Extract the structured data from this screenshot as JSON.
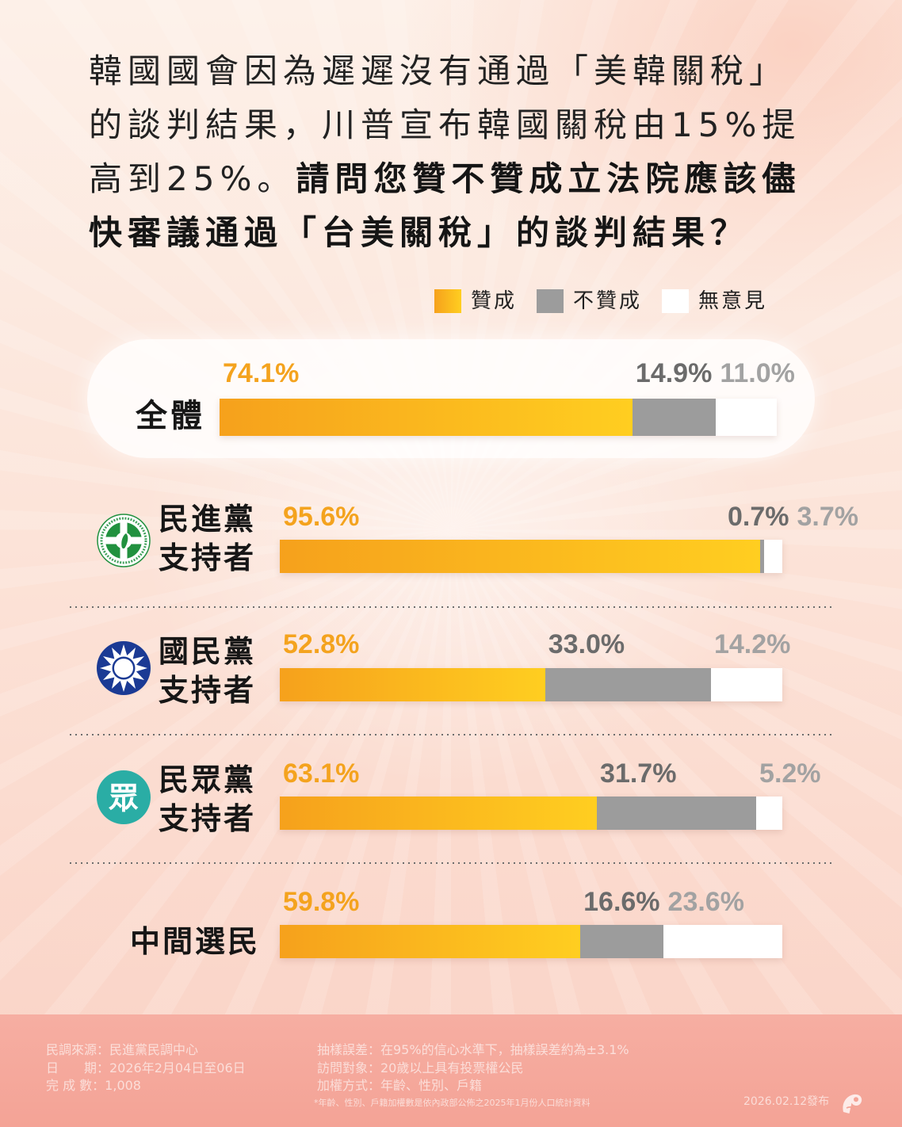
{
  "header": {
    "line1": "韓國國會因為遲遲沒有通過「美韓關稅」",
    "line2": "的談判結果，川普宣布韓國關稅由15%提",
    "line3_normal": "高到25%。",
    "line3_bold": "請問您贊不贊成立法院應該儘",
    "line4_bold": "快審議通過「台美關稅」的談判結果？"
  },
  "chart_data": {
    "type": "bar",
    "orientation": "horizontal",
    "stacked": true,
    "categories": [
      "全體",
      "民進黨支持者",
      "國民黨支持者",
      "民眾黨支持者",
      "中間選民"
    ],
    "category_icons": [
      "",
      "dpp-logo-icon",
      "kmt-logo-icon",
      "tpp-logo-icon",
      ""
    ],
    "series": [
      {
        "name": "贊成",
        "values": [
          74.1,
          95.6,
          52.8,
          63.1,
          59.8
        ],
        "labels": [
          "74.1%",
          "95.6%",
          "52.8%",
          "63.1%",
          "59.8%"
        ],
        "color": "#F6A11C",
        "color_end": "#FFCE20",
        "label_color": "#F4A31E"
      },
      {
        "name": "不贊成",
        "values": [
          14.9,
          0.7,
          33.0,
          31.7,
          16.6
        ],
        "labels": [
          "14.9%",
          "0.7%",
          "33.0%",
          "31.7%",
          "16.6%"
        ],
        "color": "#9C9C9C",
        "label_color": "#6B6B6B"
      },
      {
        "name": "無意見",
        "values": [
          11.0,
          3.7,
          14.2,
          5.2,
          23.6
        ],
        "labels": [
          "11.0%",
          "3.7%",
          "14.2%",
          "5.2%",
          "23.6%"
        ],
        "color": "#FFFFFF",
        "label_color": "#A2A2A2"
      }
    ],
    "xlim": [
      0,
      100
    ],
    "grid": false,
    "legend": "top-right"
  },
  "logo_text": {
    "tpp": "眾"
  },
  "footer": {
    "source": "民調來源：民進黨民調中心",
    "date": "日　　期：2026年2月04日至06日",
    "sample": "完 成 數：1,008",
    "margin_of_error": "抽樣誤差：在95%的信心水準下，抽樣誤差約為±3.1%",
    "respondents": "訪問對象：20歲以上具有投票權公民",
    "weighting": "加權方式：年齡、性別、戶籍",
    "note": "*年齡、性別、戶籍加權數是依內政部公佈之2025年1月份人口統計資料",
    "published": "2026.02.12發布",
    "publisher_icon": "publisher-logo-icon"
  }
}
